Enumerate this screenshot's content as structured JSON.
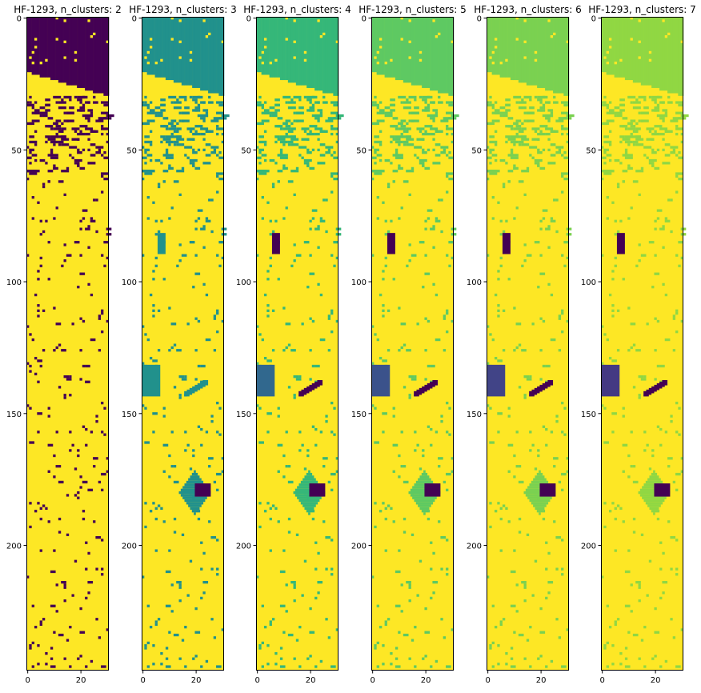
{
  "figure": {
    "background": "#ffffff"
  },
  "palettes": {
    "2": [
      "#440154",
      "#fde725"
    ],
    "3": [
      "#440154",
      "#21918c",
      "#fde725"
    ],
    "4": [
      "#440154",
      "#31688e",
      "#35b779",
      "#fde725"
    ],
    "5": [
      "#440154",
      "#3b528b",
      "#21918c",
      "#5ec962",
      "#fde725"
    ],
    "6": [
      "#440154",
      "#414487",
      "#2a788e",
      "#22a884",
      "#7ad151",
      "#fde725"
    ],
    "7": [
      "#440154",
      "#443983",
      "#31688e",
      "#21918c",
      "#35b779",
      "#90d743",
      "#fde725"
    ]
  },
  "chart_data": [
    {
      "type": "heatmap",
      "title": "HF-1293, n_clusters: 2",
      "n_clusters": 2,
      "grid_cols": 31,
      "grid_rows": 248,
      "xticks": [
        0,
        20
      ],
      "yticks": [
        0,
        50,
        100,
        150,
        200
      ],
      "colormap": "viridis",
      "top_region_cluster": 0,
      "background_cluster": 1
    },
    {
      "type": "heatmap",
      "title": "HF-1293, n_clusters: 3",
      "n_clusters": 3,
      "grid_cols": 31,
      "grid_rows": 248,
      "xticks": [
        0,
        20
      ],
      "yticks": [
        0,
        50,
        100,
        150,
        200
      ],
      "colormap": "viridis",
      "top_region_cluster": 1,
      "background_cluster": 2
    },
    {
      "type": "heatmap",
      "title": "HF-1293, n_clusters: 4",
      "n_clusters": 4,
      "grid_cols": 31,
      "grid_rows": 248,
      "xticks": [
        0,
        20
      ],
      "yticks": [
        0,
        50,
        100,
        150,
        200
      ],
      "colormap": "viridis",
      "top_region_cluster": 2,
      "background_cluster": 3
    },
    {
      "type": "heatmap",
      "title": "HF-1293, n_clusters: 5",
      "n_clusters": 5,
      "grid_cols": 31,
      "grid_rows": 248,
      "xticks": [
        0,
        20
      ],
      "yticks": [
        0,
        50,
        100,
        150,
        200
      ],
      "colormap": "viridis",
      "top_region_cluster": 3,
      "background_cluster": 4
    },
    {
      "type": "heatmap",
      "title": "HF-1293, n_clusters: 6",
      "n_clusters": 6,
      "grid_cols": 31,
      "grid_rows": 248,
      "xticks": [
        0,
        20
      ],
      "yticks": [
        0,
        50,
        100,
        150,
        200
      ],
      "colormap": "viridis",
      "top_region_cluster": 4,
      "background_cluster": 5
    },
    {
      "type": "heatmap",
      "title": "HF-1293, n_clusters: 7",
      "n_clusters": 7,
      "grid_cols": 31,
      "grid_rows": 248,
      "xticks": [
        0,
        20
      ],
      "yticks": [
        0,
        50,
        100,
        150,
        200
      ],
      "colormap": "viridis",
      "top_region_cluster": 5,
      "background_cluster": 6
    }
  ]
}
